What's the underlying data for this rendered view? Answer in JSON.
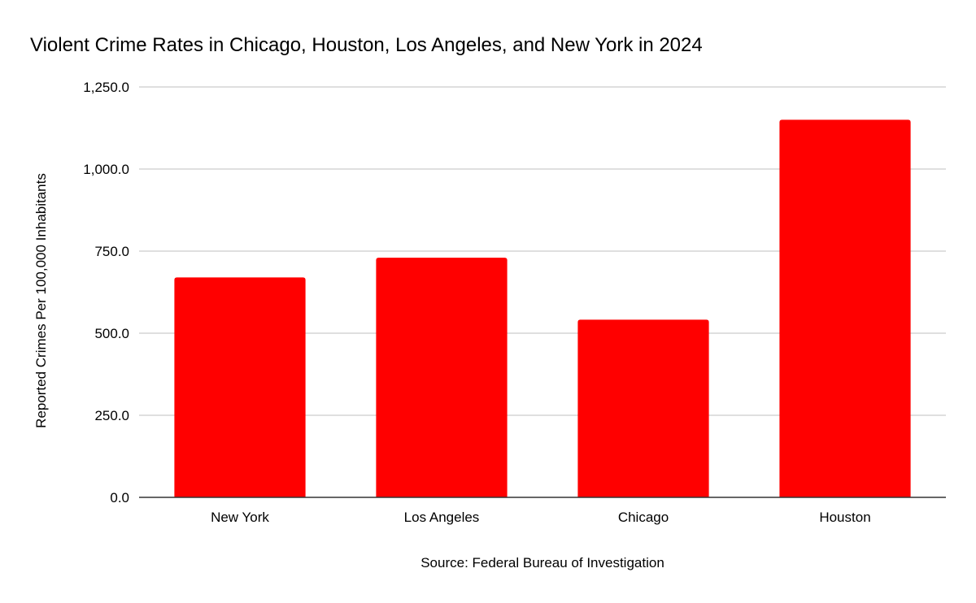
{
  "chart_data": {
    "type": "bar",
    "title": "Violent Crime Rates in Chicago, Houston, Los Angeles, and New York in 2024",
    "xlabel": "Source: Federal Bureau of Investigation",
    "ylabel": "Reported Crimes Per 100,000 Inhabitants",
    "categories": [
      "New York",
      "Los Angeles",
      "Chicago",
      "Houston"
    ],
    "values": [
      670,
      730,
      541,
      1150
    ],
    "ylim": [
      0,
      1250
    ],
    "yticks": [
      0,
      250,
      500,
      750,
      1000,
      1250
    ],
    "ytick_labels": [
      "0.0",
      "250.0",
      "500.0",
      "750.0",
      "1,000.0",
      "1,250.0"
    ],
    "grid": true,
    "legend": "none",
    "bar_color": "#ff0000"
  }
}
